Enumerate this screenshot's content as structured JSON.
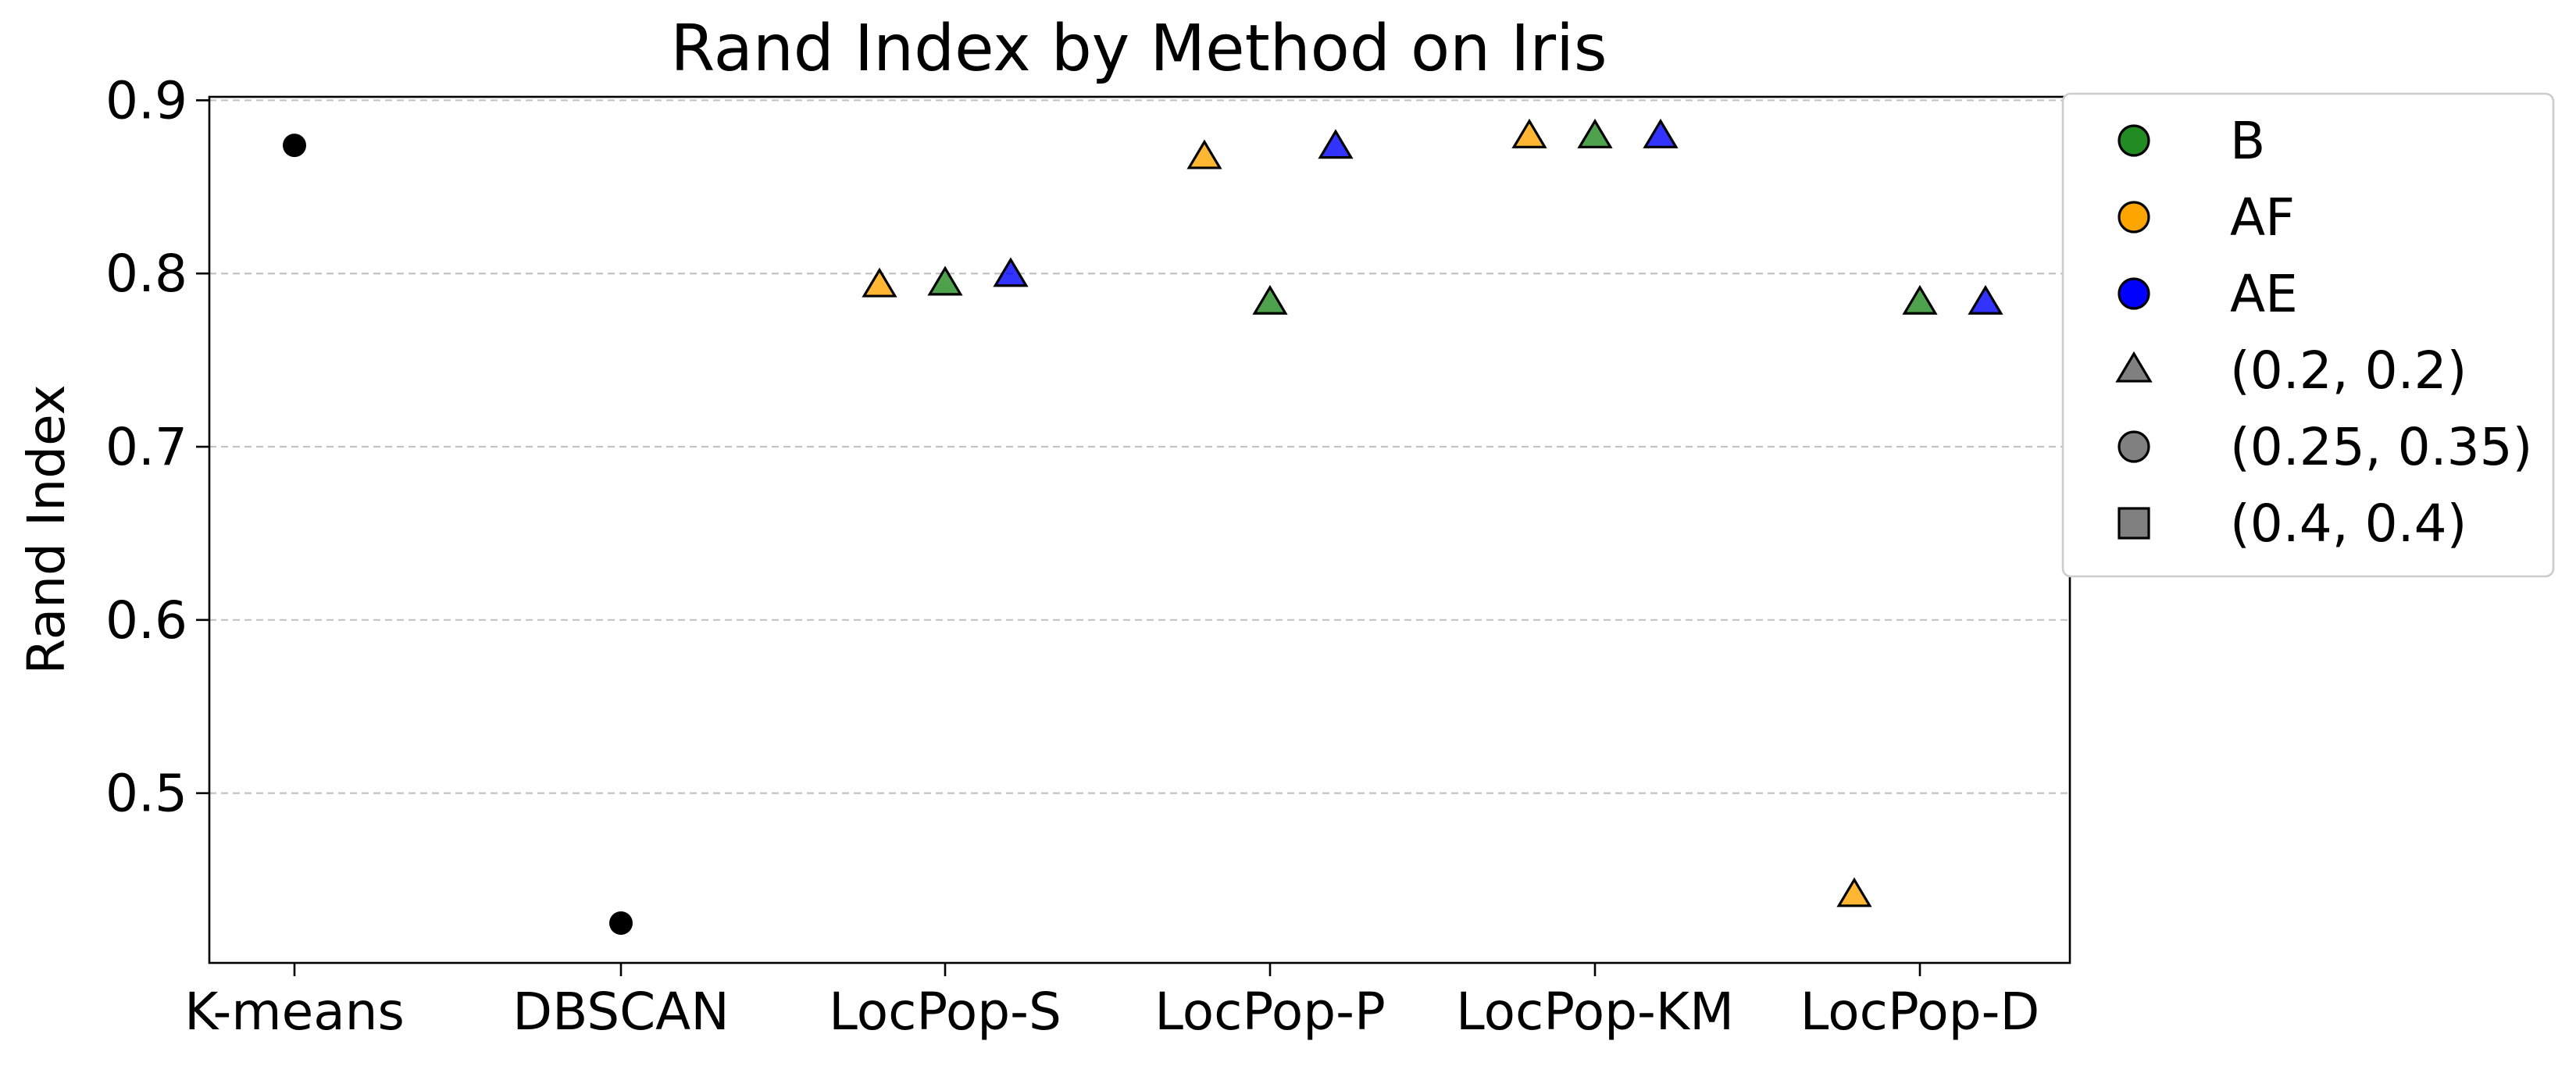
{
  "chart_data": {
    "type": "scatter",
    "title": "Rand Index by Method on Iris",
    "xlabel": "",
    "ylabel": "Rand Index",
    "categories": [
      "K-means",
      "DBSCAN",
      "LocPop-S",
      "LocPop-P",
      "LocPop-KM",
      "LocPop-D"
    ],
    "ylim": [
      0.402,
      0.902
    ],
    "yticks": [
      "0.5",
      "0.6",
      "0.7",
      "0.8",
      "0.9"
    ],
    "grid": "horizontal dashed",
    "legend_position": "outside right, top",
    "colors": {
      "B": "#228B22",
      "AF": "#FFA500",
      "AE": "#0000FF",
      "baseline": "#000000",
      "legend_neutral": "#808080"
    },
    "legend": [
      {
        "label": "B",
        "marker": "circle",
        "color": "#228B22"
      },
      {
        "label": "AF",
        "marker": "circle",
        "color": "#FFA500"
      },
      {
        "label": "AE",
        "marker": "circle",
        "color": "#0000FF"
      },
      {
        "label": "(0.2, 0.2)",
        "marker": "triangle",
        "color": "#808080"
      },
      {
        "label": "(0.25, 0.35)",
        "marker": "circle",
        "color": "#808080"
      },
      {
        "label": "(0.4, 0.4)",
        "marker": "square",
        "color": "#808080"
      }
    ],
    "series": [
      {
        "group": "baseline",
        "marker": "circle",
        "color": "#000000",
        "points": [
          {
            "category": "K-means",
            "y": 0.874
          },
          {
            "category": "DBSCAN",
            "y": 0.425
          }
        ]
      },
      {
        "group": "AF",
        "marker": "triangle",
        "color": "#FFA500",
        "points": [
          {
            "category": "LocPop-S",
            "y": 0.793
          },
          {
            "category": "LocPop-P",
            "y": 0.867
          },
          {
            "category": "LocPop-KM",
            "y": 0.879
          },
          {
            "category": "LocPop-D",
            "y": 0.441
          }
        ]
      },
      {
        "group": "B",
        "marker": "triangle",
        "color": "#228B22",
        "points": [
          {
            "category": "LocPop-S",
            "y": 0.794
          },
          {
            "category": "LocPop-P",
            "y": 0.783
          },
          {
            "category": "LocPop-KM",
            "y": 0.879
          },
          {
            "category": "LocPop-D",
            "y": 0.783
          }
        ]
      },
      {
        "group": "AE",
        "marker": "triangle",
        "color": "#0000FF",
        "points": [
          {
            "category": "LocPop-S",
            "y": 0.799
          },
          {
            "category": "LocPop-P",
            "y": 0.873
          },
          {
            "category": "LocPop-KM",
            "y": 0.879
          },
          {
            "category": "LocPop-D",
            "y": 0.783
          }
        ]
      }
    ]
  }
}
